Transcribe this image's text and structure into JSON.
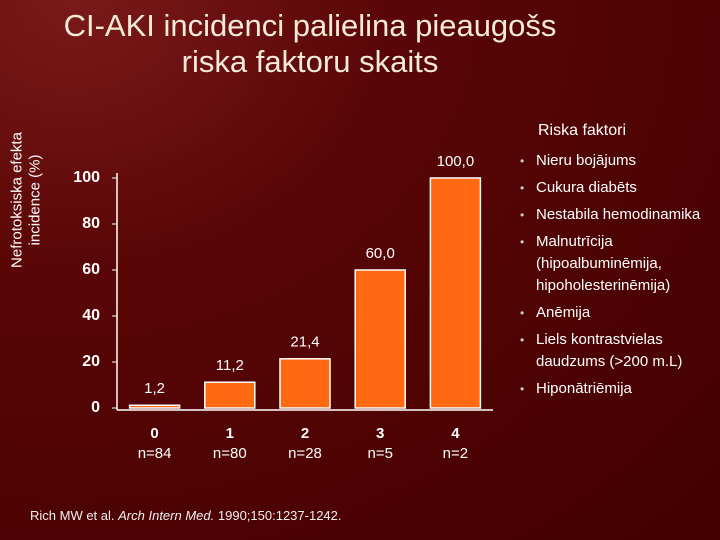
{
  "chart_data": {
    "type": "bar",
    "title": [
      "CI-AKI incidenci palielina pieaugošs",
      "riska faktoru skaits"
    ],
    "ylabel": [
      "Nefrotoksiska efekta",
      "incidence (%)"
    ],
    "categories": [
      "0",
      "1",
      "2",
      "3",
      "4"
    ],
    "category_sublabels": [
      "n=84",
      "n=80",
      "n=28",
      "n=5",
      "n=2"
    ],
    "values": [
      1.2,
      11.2,
      21.4,
      60.0,
      100.0
    ],
    "value_labels": [
      "1,2",
      "11,2",
      "21,4",
      "60,0",
      "100,0"
    ],
    "color": "#ff6a10",
    "ylim": [
      0,
      100
    ],
    "yticks": [
      0,
      20,
      40,
      60,
      80,
      100
    ],
    "grid": false,
    "risk_factors": {
      "title": "Riska faktori",
      "items": [
        "Nieru bojājums",
        "Cukura diabēts",
        "Nestabila hemodinamika",
        "Malnutrīcija (hipoalbuminēmija, hipoholesterinēmija)",
        "Anēmija",
        "Liels kontrastvielas daudzums (>200 m.L)",
        "Hiponātriēmija"
      ]
    },
    "source": [
      "Rich MW et al.",
      "Arch Intern Med.",
      "1990;150:1237-1242."
    ]
  }
}
